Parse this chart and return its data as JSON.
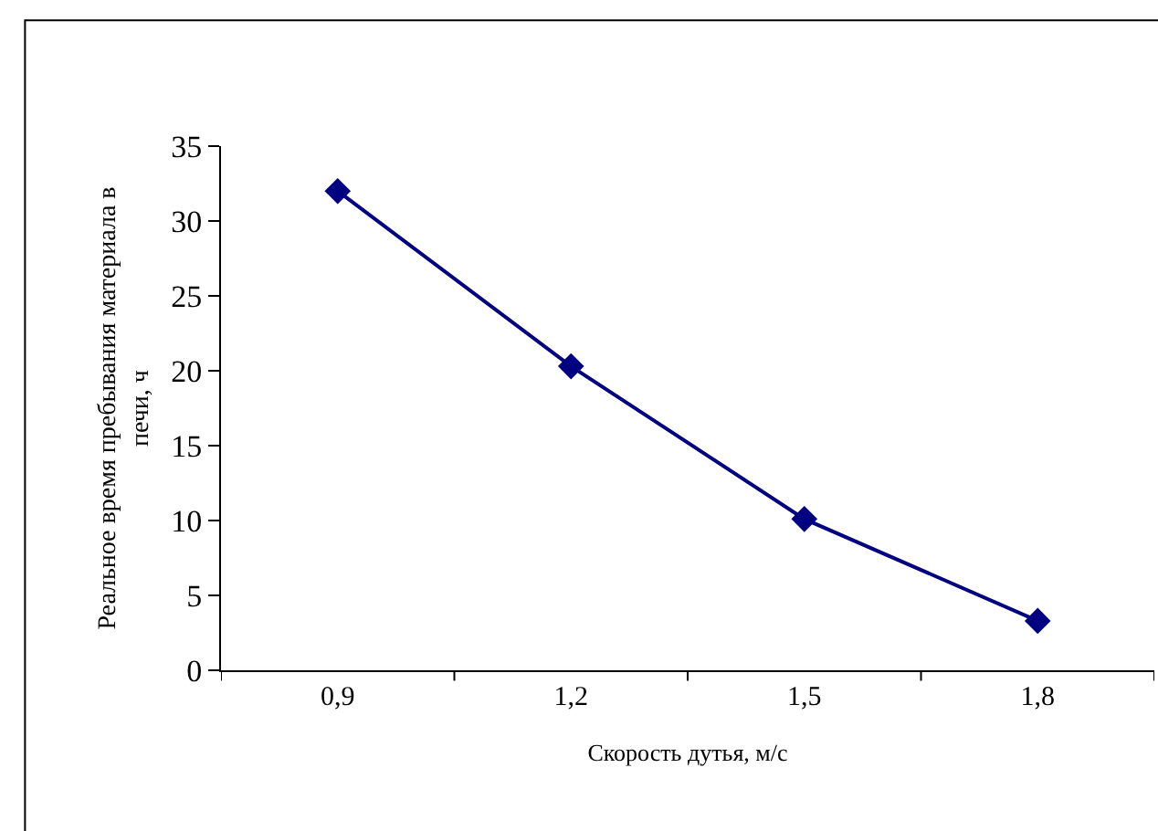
{
  "chart_data": {
    "type": "line",
    "xlabel": "Скорость дутья, м/с",
    "ylabel": "Реальное время пребывания материала в печи, ч",
    "categories": [
      "0,9",
      "1,2",
      "1,5",
      "1,8"
    ],
    "series": [
      {
        "color": "#000080",
        "values": [
          32.0,
          20.3,
          10.1,
          3.3
        ]
      }
    ],
    "ylim": [
      0,
      35
    ],
    "yticks": [
      0,
      5,
      10,
      15,
      20,
      25,
      30,
      35
    ],
    "marker": "diamond",
    "line_style": "solid"
  }
}
